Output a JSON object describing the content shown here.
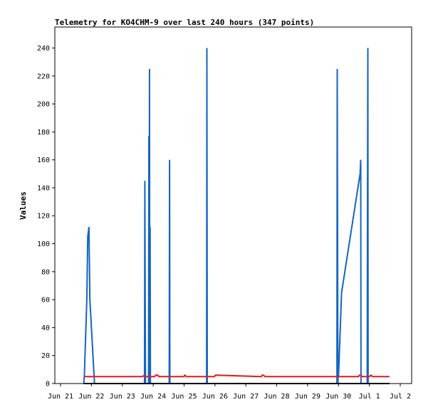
{
  "chart_data": {
    "type": "line",
    "title": "Telemetry for KO4CHM-9 over last 240 hours (347 points)",
    "xlabel": "",
    "ylabel": "Values",
    "ylim": [
      0,
      255
    ],
    "xlim": [
      0,
      11
    ],
    "x_unit": "days since Jun 21",
    "yticks": [
      0,
      20,
      40,
      60,
      80,
      100,
      120,
      140,
      160,
      180,
      200,
      220,
      240
    ],
    "xticks": [
      {
        "x": 0,
        "label": "Jun 21"
      },
      {
        "x": 1,
        "label": "Jun 22"
      },
      {
        "x": 2,
        "label": "Jun 23"
      },
      {
        "x": 3,
        "label": "Jun 24"
      },
      {
        "x": 4,
        "label": "Jun 25"
      },
      {
        "x": 5,
        "label": "Jun 26"
      },
      {
        "x": 6,
        "label": "Jun 27"
      },
      {
        "x": 7,
        "label": "Jun 28"
      },
      {
        "x": 8,
        "label": "Jun 29"
      },
      {
        "x": 9,
        "label": "Jun 30"
      },
      {
        "x": 10,
        "label": "Jul 1"
      },
      {
        "x": 11,
        "label": "Jul 2"
      }
    ],
    "grid": false,
    "legend": "none",
    "series": [
      {
        "color": "#1565c0",
        "x": [
          0.75,
          0.77,
          0.85,
          0.88,
          0.92,
          0.95,
          1.1,
          1.12,
          2.72,
          2.73,
          2.74,
          2.75,
          2.76,
          2.85,
          2.86,
          2.87,
          2.88,
          2.89,
          2.9,
          2.91,
          3.52,
          3.53,
          3.54,
          4.73,
          4.74,
          4.75,
          8.95,
          8.96,
          8.97,
          8.98,
          8.99,
          9.0,
          9.1,
          9.7,
          9.72,
          9.73,
          9.93,
          9.94,
          9.95,
          9.96,
          9.97
        ],
        "y": [
          0,
          5,
          60,
          105,
          112,
          60,
          0,
          0,
          0,
          145,
          70,
          0,
          0,
          0,
          177,
          0,
          225,
          0,
          112,
          0,
          0,
          160,
          0,
          0,
          240,
          0,
          0,
          225,
          112,
          0,
          5,
          5,
          65,
          150,
          160,
          0,
          0,
          120,
          240,
          0,
          0
        ]
      },
      {
        "color": "#e41a1c",
        "x": [
          0.75,
          2.65,
          2.72,
          2.75,
          3.05,
          3.08,
          3.15,
          3.18,
          4.0,
          4.02,
          4.08,
          4.98,
          5.02,
          6.5,
          6.53,
          6.57,
          6.62,
          9.65,
          9.68,
          9.72,
          9.76,
          10.0,
          10.05,
          10.1,
          10.65
        ],
        "y": [
          5,
          5,
          6,
          5,
          5,
          6,
          6,
          5,
          5,
          6,
          5,
          5,
          6,
          5,
          6,
          6,
          5,
          5,
          6,
          6,
          5,
          5,
          6,
          5,
          5
        ]
      },
      {
        "color": "#000000",
        "x": [
          0.75,
          10.65
        ],
        "y": [
          0,
          0
        ]
      }
    ]
  }
}
